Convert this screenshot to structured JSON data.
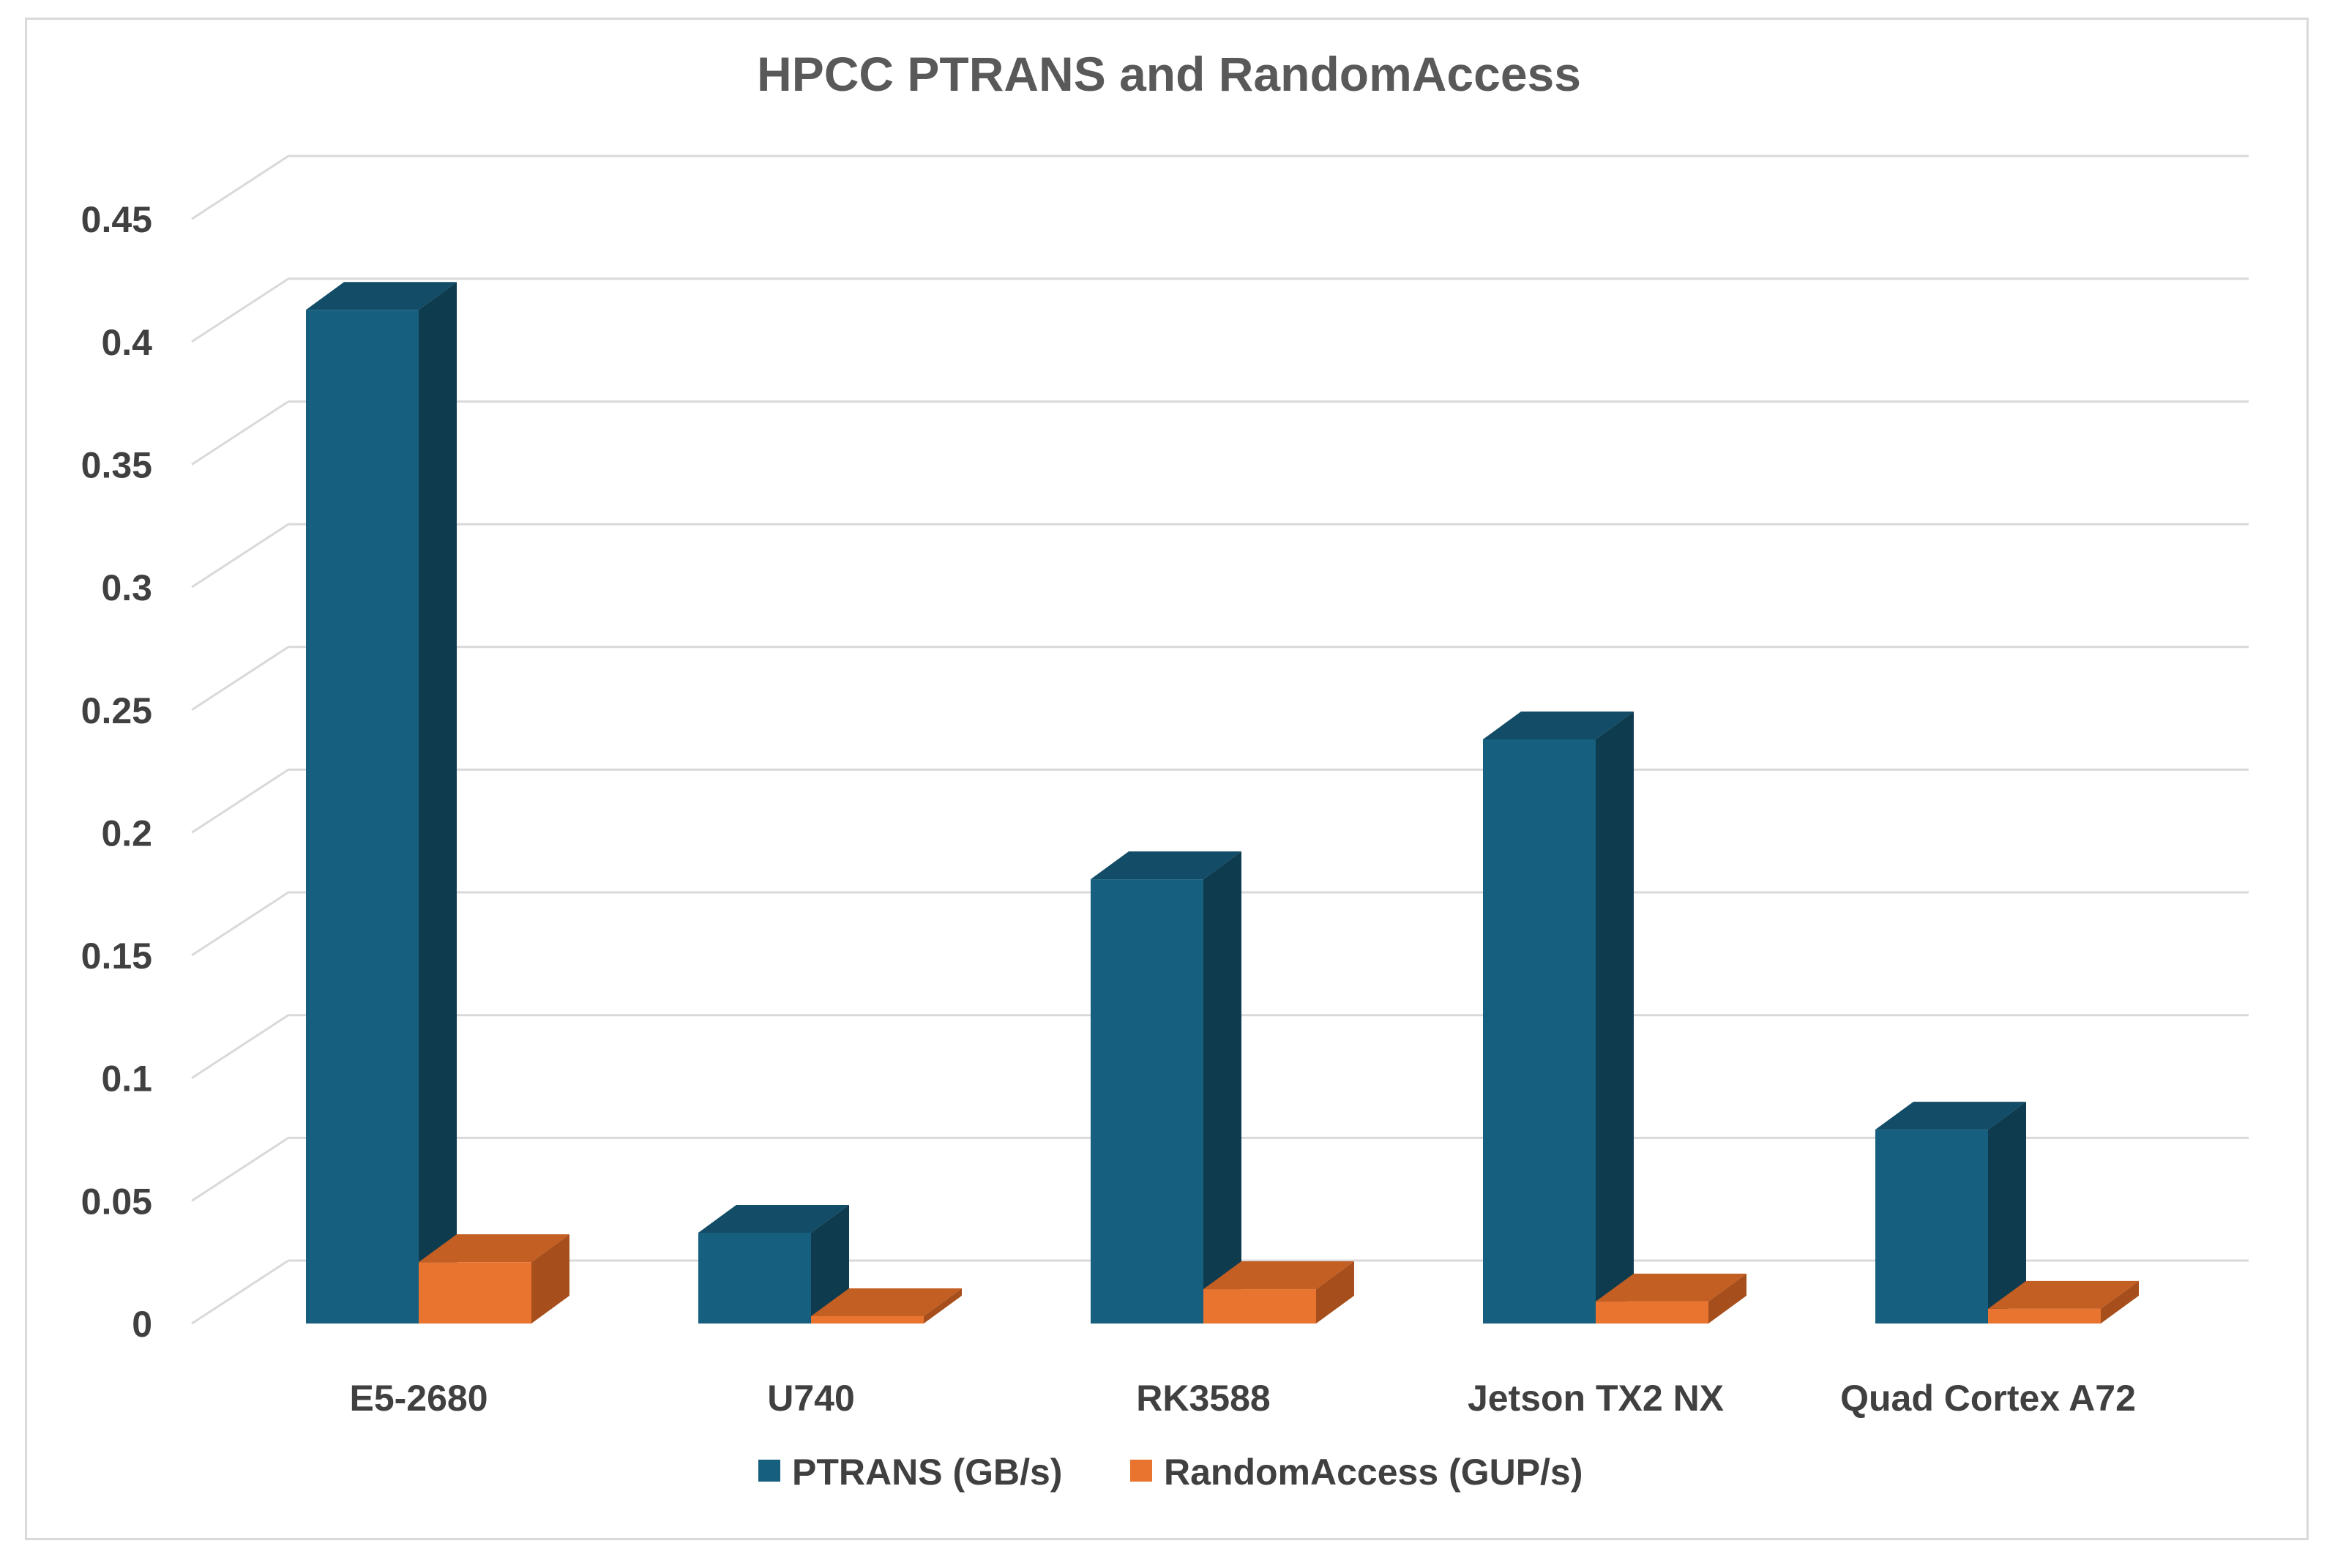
{
  "chart_data": {
    "type": "bar",
    "title": "HPCC PTRANS and RandomAccess",
    "xlabel": "",
    "ylabel": "",
    "categories": [
      "E5-2680",
      "U740",
      "RK3588",
      "Jetson TX2 NX",
      "Quad Cortex A72"
    ],
    "series": [
      {
        "name": "PTRANS (GB/s)",
        "values": [
          0.413,
          0.037,
          0.181,
          0.238,
          0.079
        ],
        "color_front": "#175f7f",
        "color_side": "#0f3b4f",
        "color_top": "#124c66"
      },
      {
        "name": "RandomAccess (GUP/s)",
        "values": [
          0.025,
          0.003,
          0.014,
          0.009,
          0.006
        ],
        "color_front": "#e8742f",
        "color_side": "#a64f1c",
        "color_top": "#c45f23"
      }
    ],
    "ylim": [
      0,
      0.45
    ],
    "yticks": [
      "0",
      "0.05",
      "0.1",
      "0.15",
      "0.2",
      "0.25",
      "0.3",
      "0.35",
      "0.4",
      "0.45"
    ],
    "grid": true,
    "legend_position": "bottom",
    "style": "3d-clustered-column"
  }
}
